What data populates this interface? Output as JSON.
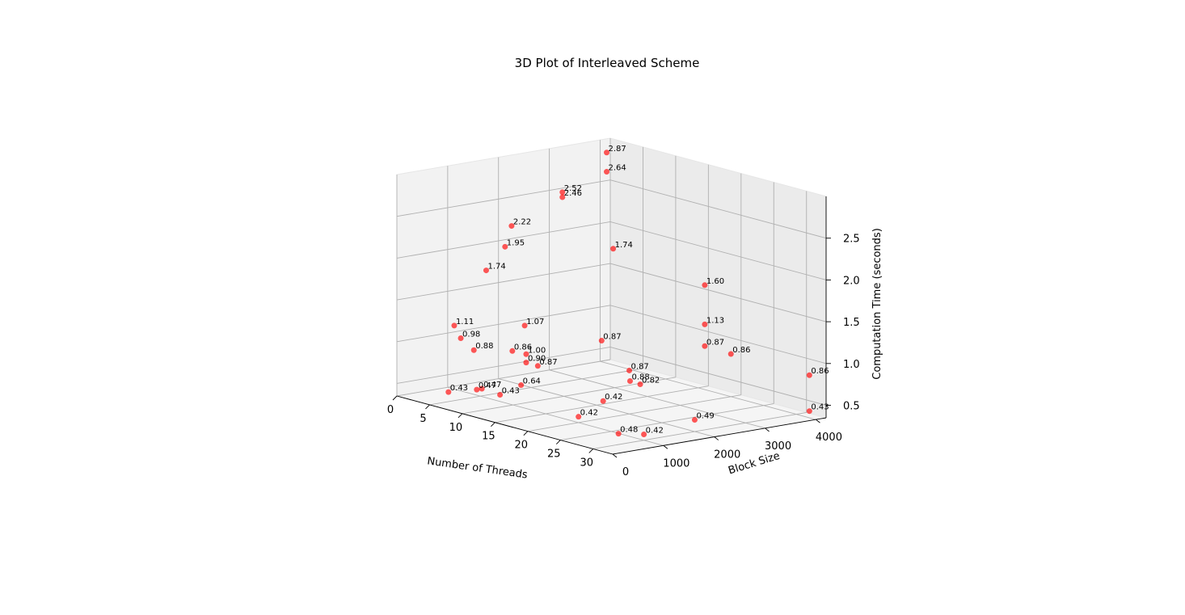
{
  "chart_data": {
    "type": "scatter",
    "title": "3D Plot of Interleaved Scheme",
    "xlabel": "Number of Threads",
    "ylabel": "Block Size",
    "zlabel": "Computation Time (seconds)",
    "xlim": [
      0,
      33
    ],
    "ylim": [
      0,
      4200
    ],
    "zlim": [
      0.35,
      3.0
    ],
    "x_ticks": [
      "0",
      "5",
      "10",
      "15",
      "20",
      "25",
      "30"
    ],
    "y_ticks": [
      "0",
      "1000",
      "2000",
      "3000",
      "4000"
    ],
    "z_ticks": [
      "0.5",
      "1.0",
      "1.5",
      "2.0",
      "2.5"
    ],
    "grid": true,
    "marker_color": "#ff0000",
    "points": [
      {
        "x": 2,
        "y": 3000,
        "z": 2.52,
        "label": "2.52"
      },
      {
        "x": 2,
        "y": 3000,
        "z": 2.46,
        "label": "2.46"
      },
      {
        "x": 2,
        "y": 2000,
        "z": 2.22,
        "label": "2.22"
      },
      {
        "x": 1,
        "y": 2000,
        "z": 1.95,
        "label": "1.95"
      },
      {
        "x": 2,
        "y": 1500,
        "z": 1.74,
        "label": "1.74"
      },
      {
        "x": 1,
        "y": 1000,
        "z": 1.11,
        "label": "1.11"
      },
      {
        "x": 2,
        "y": 1000,
        "z": 0.98,
        "label": "0.98"
      },
      {
        "x": 4,
        "y": 1000,
        "z": 0.88,
        "label": "0.88"
      },
      {
        "x": 4,
        "y": 500,
        "z": 0.43,
        "label": "0.43"
      },
      {
        "x": 1,
        "y": 4000,
        "z": 2.64,
        "label": "2.64"
      },
      {
        "x": 1,
        "y": 4000,
        "z": 2.87,
        "label": "2.87"
      },
      {
        "x": 2,
        "y": 4000,
        "z": 1.74,
        "label": "1.74"
      },
      {
        "x": 4,
        "y": 2000,
        "z": 1.07,
        "label": "1.07"
      },
      {
        "x": 6,
        "y": 1500,
        "z": 0.86,
        "label": "0.86"
      },
      {
        "x": 6,
        "y": 800,
        "z": 0.47,
        "label": "0.47"
      },
      {
        "x": 6,
        "y": 900,
        "z": 0.47,
        "label": "0.47"
      },
      {
        "x": 8,
        "y": 1000,
        "z": 0.43,
        "label": "0.43"
      },
      {
        "x": 8,
        "y": 3000,
        "z": 0.87,
        "label": "0.87"
      },
      {
        "x": 12,
        "y": 1000,
        "z": 1.0,
        "label": "1.00"
      },
      {
        "x": 12,
        "y": 1000,
        "z": 0.9,
        "label": "0.90"
      },
      {
        "x": 13,
        "y": 1100,
        "z": 0.87,
        "label": "0.87"
      },
      {
        "x": 12,
        "y": 900,
        "z": 0.64,
        "label": "0.64"
      },
      {
        "x": 16,
        "y": 2000,
        "z": 0.42,
        "label": "0.42"
      },
      {
        "x": 20,
        "y": 1000,
        "z": 0.42,
        "label": "0.42"
      },
      {
        "x": 16,
        "y": 4000,
        "z": 1.6,
        "label": "1.60"
      },
      {
        "x": 16,
        "y": 4000,
        "z": 1.13,
        "label": "1.13"
      },
      {
        "x": 16,
        "y": 4000,
        "z": 0.87,
        "label": "0.87"
      },
      {
        "x": 20,
        "y": 4000,
        "z": 0.86,
        "label": "0.86"
      },
      {
        "x": 32,
        "y": 4000,
        "z": 0.86,
        "label": "0.86"
      },
      {
        "x": 20,
        "y": 2000,
        "z": 0.87,
        "label": "0.87"
      },
      {
        "x": 24,
        "y": 1500,
        "z": 0.88,
        "label": "0.88"
      },
      {
        "x": 24,
        "y": 1700,
        "z": 0.82,
        "label": "0.82"
      },
      {
        "x": 30,
        "y": 500,
        "z": 0.48,
        "label": "0.48"
      },
      {
        "x": 30,
        "y": 1000,
        "z": 0.42,
        "label": "0.42"
      },
      {
        "x": 30,
        "y": 2000,
        "z": 0.49,
        "label": "0.49"
      },
      {
        "x": 32,
        "y": 4000,
        "z": 0.43,
        "label": "0.43"
      }
    ]
  }
}
